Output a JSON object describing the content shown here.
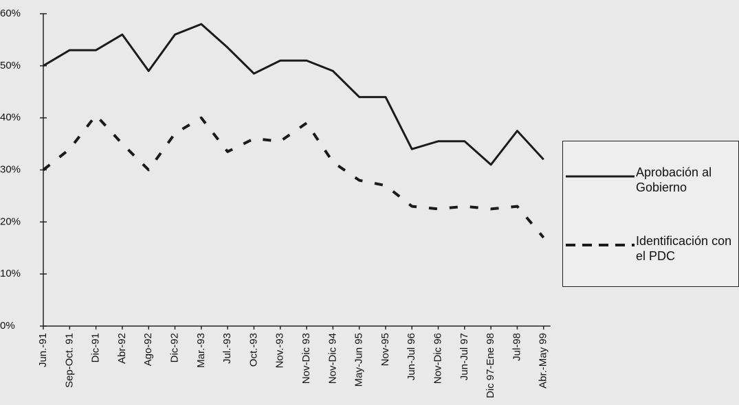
{
  "chart_data": {
    "type": "line",
    "categories": [
      "Jun.-91",
      "Sep-Oct. 91",
      "Dic-91",
      "Abr-92",
      "Ago-92",
      "Dic-92",
      "Mar.-93",
      "Jul.-93",
      "Oct.-93",
      "Nov.-93",
      "Nov-Dic 93",
      "Nov-Dic 94",
      "May-Jun 95",
      "Nov-95",
      "Jun-Jul 96",
      "Nov-Dic 96",
      "Jun-Jul 97",
      "Dic 97-Ene 98",
      "Jul-98",
      "Abr.-May 99"
    ],
    "series": [
      {
        "name": "Aprobación al Gobierno",
        "color": "#1a1a1a",
        "dash": false,
        "values": [
          50,
          53,
          53,
          56,
          49,
          56,
          58,
          53.5,
          48.5,
          51,
          51,
          49,
          44,
          44,
          34,
          35.5,
          35.5,
          31,
          37.5,
          32
        ]
      },
      {
        "name": "Identificación con el PDC",
        "color": "#1a1a1a",
        "dash": true,
        "values": [
          30,
          34,
          40.5,
          35,
          30,
          37,
          40,
          33.5,
          36,
          35.5,
          39,
          31.5,
          28,
          27,
          23,
          22.5,
          23,
          22.5,
          23,
          17
        ]
      }
    ],
    "ylim": [
      0,
      60
    ],
    "yticks": [
      {
        "value": 0,
        "label": "0%"
      },
      {
        "value": 10,
        "label": "10%"
      },
      {
        "value": 20,
        "label": "20%"
      },
      {
        "value": 30,
        "label": "30%"
      },
      {
        "value": 40,
        "label": "40%"
      },
      {
        "value": 50,
        "label": "50%"
      },
      {
        "value": 60,
        "label": "60%"
      }
    ],
    "grid": false,
    "legend": "right"
  }
}
